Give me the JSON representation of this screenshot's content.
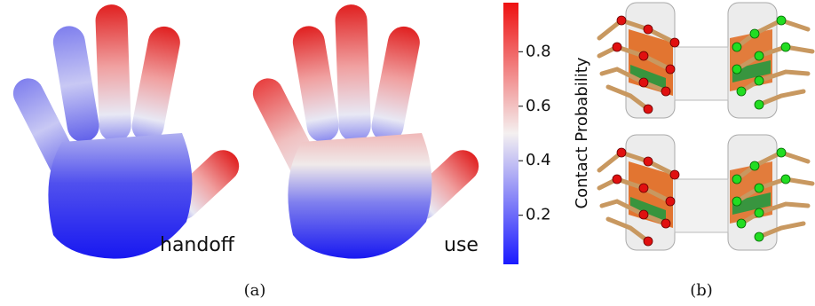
{
  "panels": [
    {
      "caption": "(a)",
      "labels": [
        "handoff",
        "use"
      ]
    },
    {
      "caption": "(b)"
    }
  ],
  "colorbar": {
    "label": "Contact Probability",
    "lim": [
      0.02,
      0.98
    ],
    "ticks": [
      0.2,
      0.4,
      0.6,
      0.8
    ]
  }
}
